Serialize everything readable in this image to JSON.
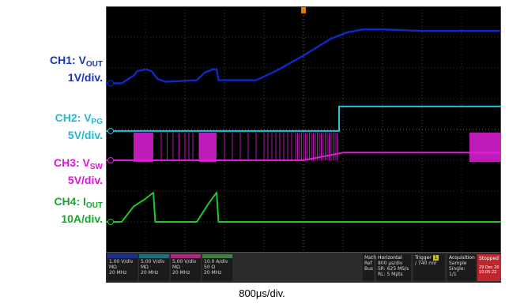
{
  "labels": {
    "ch1_name": "CH1: V",
    "ch1_sub": "OUT",
    "ch1_scale": "1V/div.",
    "ch2_name": "CH2: V",
    "ch2_sub": "PG",
    "ch2_scale": "5V/div.",
    "ch3_name": "CH3: V",
    "ch3_sub": "SW",
    "ch3_scale": "5V/div.",
    "ch4_name": "CH4: I",
    "ch4_sub": "OUT",
    "ch4_scale": "10A/div."
  },
  "colors": {
    "ch1": "#1028c8",
    "ch2": "#20c8d8",
    "ch3": "#e020d8",
    "ch4": "#20c820",
    "label_ch1": "#1a36b4",
    "label_ch2": "#1fb9d4",
    "label_ch3": "#e016d6",
    "label_ch4": "#16a82c"
  },
  "status": {
    "ch1": [
      "1.00 V/div",
      "MΩ",
      "20 MHz"
    ],
    "ch2": [
      "5.00 V/div",
      "MΩ",
      "20 MHz"
    ],
    "ch3": [
      "5.00 V/div",
      "MΩ",
      "20 MHz"
    ],
    "ch4": [
      "10.0 A/div",
      "50 Ω",
      "20 MHz"
    ],
    "math_ref": [
      "Math",
      "Ref",
      "Bus"
    ],
    "horizontal": [
      "Horizontal",
      "800 µs/div",
      "SR: 625 MS/s",
      "RL: 5 Mpts"
    ],
    "trigger": [
      "Trigger",
      "1",
      "/  740 mV"
    ],
    "acquisition": [
      "Acquisition",
      "Sample",
      "Single: 1/1"
    ],
    "stop": [
      "Stopped",
      "29 Dec 20",
      "10:05:22"
    ]
  },
  "time_div": "800μs/div.",
  "chart_data": {
    "type": "line",
    "x_unit": "divisions",
    "y_unit": "divisions",
    "xlim": [
      0,
      10
    ],
    "ylim": [
      0,
      8
    ],
    "grid": true,
    "series": [
      {
        "name": "CH1: VOUT",
        "x": [
          0,
          0.4,
          0.7,
          0.8,
          1.0,
          1.15,
          1.3,
          1.5,
          2.3,
          2.5,
          2.7,
          2.8,
          2.85,
          3.8,
          4.3,
          5.0,
          5.7,
          6.1,
          6.5,
          7.0,
          8.0,
          10.0
        ],
        "y": [
          5.5,
          5.5,
          5.75,
          5.9,
          5.95,
          5.9,
          5.65,
          5.55,
          5.6,
          5.85,
          5.95,
          5.95,
          5.6,
          5.6,
          5.9,
          6.4,
          6.95,
          7.15,
          7.25,
          7.25,
          7.2,
          7.2
        ]
      },
      {
        "name": "CH2: VPG",
        "x": [
          0,
          5.9,
          5.9,
          10.0
        ],
        "y": [
          3.95,
          3.95,
          4.75,
          4.75
        ]
      },
      {
        "name": "CH3: VSW",
        "x": [
          0,
          5.0,
          6.0,
          9.0,
          10.0
        ],
        "y": [
          3.0,
          3.0,
          3.25,
          3.25,
          3.25
        ]
      },
      {
        "name": "CH4: IOUT",
        "x": [
          0,
          0.4,
          0.7,
          1.0,
          1.2,
          1.25,
          2.3,
          2.6,
          2.8,
          2.85,
          10.0
        ],
        "y": [
          1.0,
          1.0,
          1.5,
          1.75,
          1.95,
          1.0,
          1.0,
          1.6,
          1.95,
          1.0,
          1.0
        ]
      }
    ],
    "switching_bursts": [
      [
        0.7,
        1.2
      ],
      [
        2.35,
        2.8
      ],
      [
        9.2,
        10.0
      ]
    ]
  }
}
